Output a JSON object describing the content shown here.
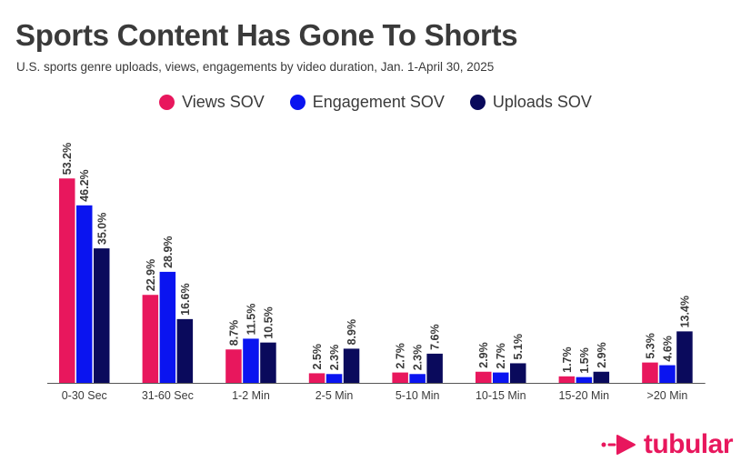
{
  "title": "Sports Content Has Gone To Shorts",
  "subtitle": "U.S. sports genre uploads, views, engagements by video duration, Jan. 1-April 30, 2025",
  "colors": {
    "views": "#e8175d",
    "engagement": "#0a14f0",
    "uploads": "#0a0a5c",
    "axis": "#555555",
    "text": "#3a3a3a"
  },
  "brand": {
    "name": "tubular",
    "icon": "tubular-arrow-logo-icon",
    "color": "#e8175d"
  },
  "chart_data": {
    "type": "bar",
    "categories": [
      "0-30 Sec",
      "31-60 Sec",
      "1-2 Min",
      "2-5 Min",
      "5-10 Min",
      "10-15 Min",
      "15-20 Min",
      ">20 Min"
    ],
    "series": [
      {
        "name": "Views SOV",
        "color": "#e8175d",
        "values": [
          53.2,
          22.9,
          8.7,
          2.5,
          2.7,
          2.9,
          1.7,
          5.3
        ],
        "labels": [
          "53.2%",
          "22.9%",
          "8.7%",
          "2.5%",
          "2.7%",
          "2.9%",
          "1.7%",
          "5.3%"
        ]
      },
      {
        "name": "Engagement SOV",
        "color": "#0a14f0",
        "values": [
          46.2,
          28.9,
          11.5,
          2.3,
          2.3,
          2.7,
          1.5,
          4.6
        ],
        "labels": [
          "46.2%",
          "28.9%",
          "11.5%",
          "2.3%",
          "2.3%",
          "2.7%",
          "1.5%",
          "4.6%"
        ]
      },
      {
        "name": "Uploads SOV",
        "color": "#0a0a5c",
        "values": [
          35.0,
          16.6,
          10.5,
          8.9,
          7.6,
          5.1,
          2.9,
          13.4
        ],
        "labels": [
          "35.0%",
          "16.6%",
          "10.5%",
          "8.9%",
          "7.6%",
          "5.1%",
          "2.9%",
          "13.4%"
        ]
      }
    ],
    "ylim": [
      0,
      60
    ],
    "grid": false,
    "legend_position": "top-center",
    "data_labels": "rotated-vertical-above-bars"
  }
}
